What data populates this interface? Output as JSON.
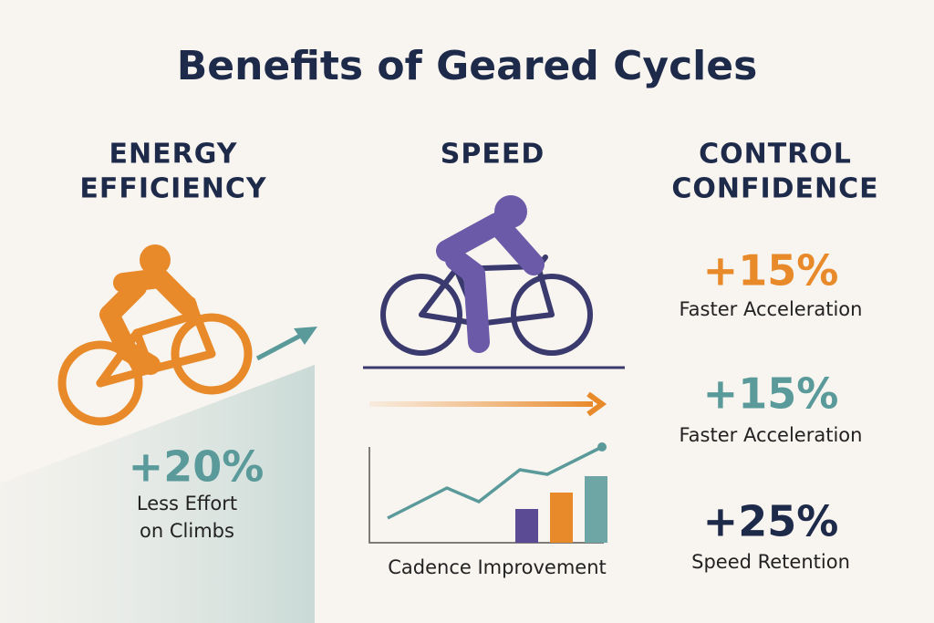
{
  "title": "Benefits of Geared Cycles",
  "columns": [
    {
      "heading": [
        "ENERGY",
        "EFFICIENCY"
      ],
      "stats": [
        {
          "value": "+20%",
          "caption": [
            "Less Effort",
            "on Climbs"
          ]
        }
      ]
    },
    {
      "heading": [
        "SPEED"
      ],
      "chart_caption": "Cadence Improvement"
    },
    {
      "heading": [
        "CONTROL",
        "CONFIDENCE"
      ],
      "stats": [
        {
          "value": "+15%",
          "caption": [
            "Faster Acceleration"
          ]
        },
        {
          "value": "+15%",
          "caption": [
            "Faster Acceleration"
          ]
        },
        {
          "value": "+25%",
          "caption": [
            "Speed Retention"
          ]
        }
      ]
    }
  ]
}
